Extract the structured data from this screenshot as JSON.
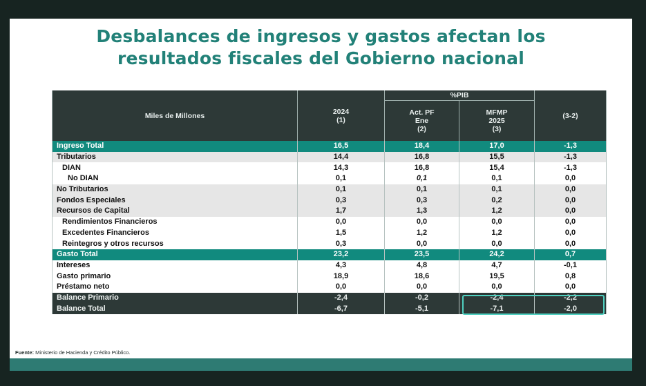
{
  "title_line1": "Desbalances de ingresos y gastos afectan los",
  "title_line2": "resultados fiscales del Gobierno nacional",
  "table": {
    "group_header": "%PIB",
    "col_headers": {
      "label": "Miles de Millones",
      "c1_l1": "2024",
      "c1_l2": "(1)",
      "c2_l1": "Act. PF",
      "c2_l2": "Ene",
      "c2_l3": "(2)",
      "c3_l1": "MFMP",
      "c3_l2": "2025",
      "c3_l3": "(3)",
      "c4_l1": "(3-2)"
    },
    "rows": [
      {
        "label": "Ingreso Total",
        "v1": "16,5",
        "v2": "18,4",
        "v3": "17,0",
        "v4": "-1,3"
      },
      {
        "label": "Tributarios",
        "v1": "14,4",
        "v2": "16,8",
        "v3": "15,5",
        "v4": "-1,3"
      },
      {
        "label": "DIAN",
        "v1": "14,3",
        "v2": "16,8",
        "v3": "15,4",
        "v4": "-1,3"
      },
      {
        "label": "No DIAN",
        "v1": "0,1",
        "v2": "0,1",
        "v3": "0,1",
        "v4": "0,0"
      },
      {
        "label": "No Tributarios",
        "v1": "0,1",
        "v2": "0,1",
        "v3": "0,1",
        "v4": "0,0"
      },
      {
        "label": "Fondos Especiales",
        "v1": "0,3",
        "v2": "0,3",
        "v3": "0,2",
        "v4": "0,0"
      },
      {
        "label": "Recursos de Capital",
        "v1": "1,7",
        "v2": "1,3",
        "v3": "1,2",
        "v4": "0,0"
      },
      {
        "label": "Rendimientos Financieros",
        "v1": "0,0",
        "v2": "0,0",
        "v3": "0,0",
        "v4": "0,0"
      },
      {
        "label": "Excedentes Financieros",
        "v1": "1,5",
        "v2": "1,2",
        "v3": "1,2",
        "v4": "0,0"
      },
      {
        "label": "Reintegros y otros recursos",
        "v1": "0,3",
        "v2": "0,0",
        "v3": "0,0",
        "v4": "0,0"
      },
      {
        "label": "Gasto Total",
        "v1": "23,2",
        "v2": "23,5",
        "v3": "24,2",
        "v4": "0,7"
      },
      {
        "label": "Intereses",
        "v1": "4,3",
        "v2": "4,8",
        "v3": "4,7",
        "v4": "-0,1"
      },
      {
        "label": "Gasto primario",
        "v1": "18,9",
        "v2": "18,6",
        "v3": "19,5",
        "v4": "0,8"
      },
      {
        "label": "Préstamo neto",
        "v1": "0,0",
        "v2": "0,0",
        "v3": "0,0",
        "v4": "0,0"
      },
      {
        "label": "Balance Primario",
        "v1": "-2,4",
        "v2": "-0,2",
        "v3": "-2,4",
        "v4": "-2,2"
      },
      {
        "label": "Balance Total",
        "v1": "-6,7",
        "v2": "-5,1",
        "v3": "-7,1",
        "v4": "-2,0"
      }
    ]
  },
  "source_label": "Fuente:",
  "source_text": " Ministerio de Hacienda y Crédito Público.",
  "colors": {
    "title": "#228178",
    "header_dark": "#2d3937",
    "total_row": "#118a7e",
    "shaded_row": "#e6e6e6",
    "highlight_box": "#4fd0c0"
  }
}
